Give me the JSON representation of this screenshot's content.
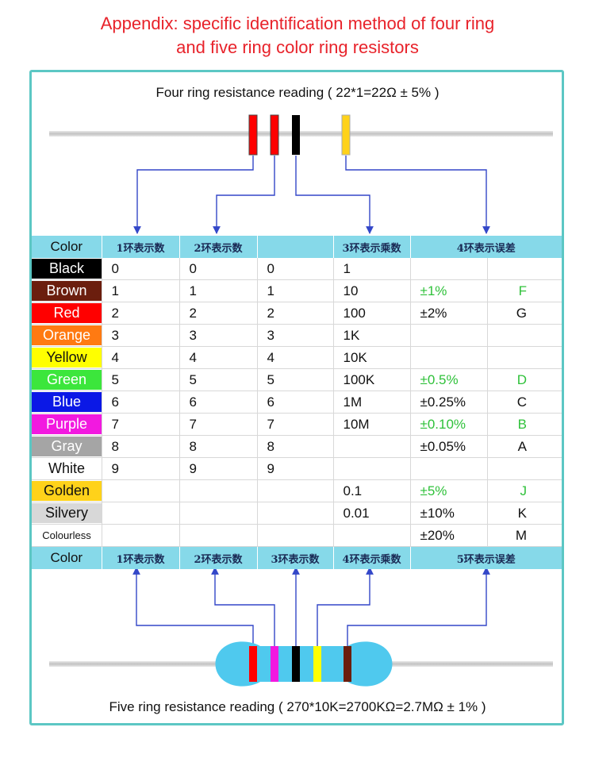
{
  "title_line1": "Appendix: specific identification method of four ring",
  "title_line2": "and five ring color ring resistors",
  "four_ring_reading": "Four ring resistance reading ( 22*1=22Ω ± 5% )",
  "five_ring_reading": "Five ring resistance reading ( 270*10K=2700KΩ=2.7MΩ ± 1% )",
  "top_header": [
    "Color",
    "1环表示数",
    "2环表示数",
    "",
    "3环表示乘数",
    "4环表示误差"
  ],
  "bottom_header": [
    "Color",
    "1环表示数",
    "2环表示数",
    "3环表示数",
    "4环表示乘数",
    "5环表示误差"
  ],
  "rows": [
    {
      "color": "Black",
      "bg": "#000000",
      "fg": "#ffffff",
      "d1": "0",
      "d2": "0",
      "d3": "0",
      "mult": "1",
      "tol": "",
      "code": ""
    },
    {
      "color": "Brown",
      "bg": "#6b1e0e",
      "fg": "#ffffff",
      "d1": "1",
      "d2": "1",
      "d3": "1",
      "mult": "10",
      "tol": "±1%",
      "code": "F",
      "tolColor": "#2fc13a"
    },
    {
      "color": "Red",
      "bg": "#ff0000",
      "fg": "#ffffff",
      "d1": "2",
      "d2": "2",
      "d3": "2",
      "mult": "100",
      "tol": "±2%",
      "code": "G",
      "tolColor": "#111111"
    },
    {
      "color": "Orange",
      "bg": "#ff7a12",
      "fg": "#ffffff",
      "d1": "3",
      "d2": "3",
      "d3": "3",
      "mult": "1K",
      "tol": "",
      "code": ""
    },
    {
      "color": "Yellow",
      "bg": "#ffff00",
      "fg": "#111111",
      "d1": "4",
      "d2": "4",
      "d3": "4",
      "mult": "10K",
      "tol": "",
      "code": ""
    },
    {
      "color": "Green",
      "bg": "#3ce63c",
      "fg": "#ffffff",
      "d1": "5",
      "d2": "5",
      "d3": "5",
      "mult": "100K",
      "tol": "±0.5%",
      "code": "D",
      "tolColor": "#2fc13a"
    },
    {
      "color": "Blue",
      "bg": "#0b18e6",
      "fg": "#ffffff",
      "d1": "6",
      "d2": "6",
      "d3": "6",
      "mult": "1M",
      "tol": "±0.25%",
      "code": "C",
      "tolColor": "#111111"
    },
    {
      "color": "Purple",
      "bg": "#f219e0",
      "fg": "#ffffff",
      "d1": "7",
      "d2": "7",
      "d3": "7",
      "mult": "10M",
      "tol": "±0.10%",
      "code": "B",
      "tolColor": "#2fc13a"
    },
    {
      "color": "Gray",
      "bg": "#a5a5a5",
      "fg": "#ffffff",
      "d1": "8",
      "d2": "8",
      "d3": "8",
      "mult": "",
      "tol": "±0.05%",
      "code": "A",
      "tolColor": "#111111"
    },
    {
      "color": "White",
      "bg": "#ffffff",
      "fg": "#111111",
      "d1": "9",
      "d2": "9",
      "d3": "9",
      "mult": "",
      "tol": "",
      "code": ""
    },
    {
      "color": "Golden",
      "bg": "#ffd21a",
      "fg": "#111111",
      "d1": "",
      "d2": "",
      "d3": "",
      "mult": "0.1",
      "tol": "±5%",
      "code": "J",
      "tolColor": "#2fc13a"
    },
    {
      "color": "Silvery",
      "bg": "#d8d8d8",
      "fg": "#111111",
      "d1": "",
      "d2": "",
      "d3": "",
      "mult": "0.01",
      "tol": "±10%",
      "code": "K",
      "tolColor": "#111111"
    },
    {
      "color": "Colourless",
      "bg": "#ffffff",
      "fg": "#111111",
      "small": true,
      "d1": "",
      "d2": "",
      "d3": "",
      "mult": "",
      "tol": "±20%",
      "code": "M",
      "tolColor": "#111111"
    }
  ],
  "colors": {
    "frame": "#5cc7c4",
    "header_bg": "#86d9e9",
    "arrow": "#3347c8",
    "title": "#e8222a",
    "resistor_body": "#4fc9ee"
  }
}
